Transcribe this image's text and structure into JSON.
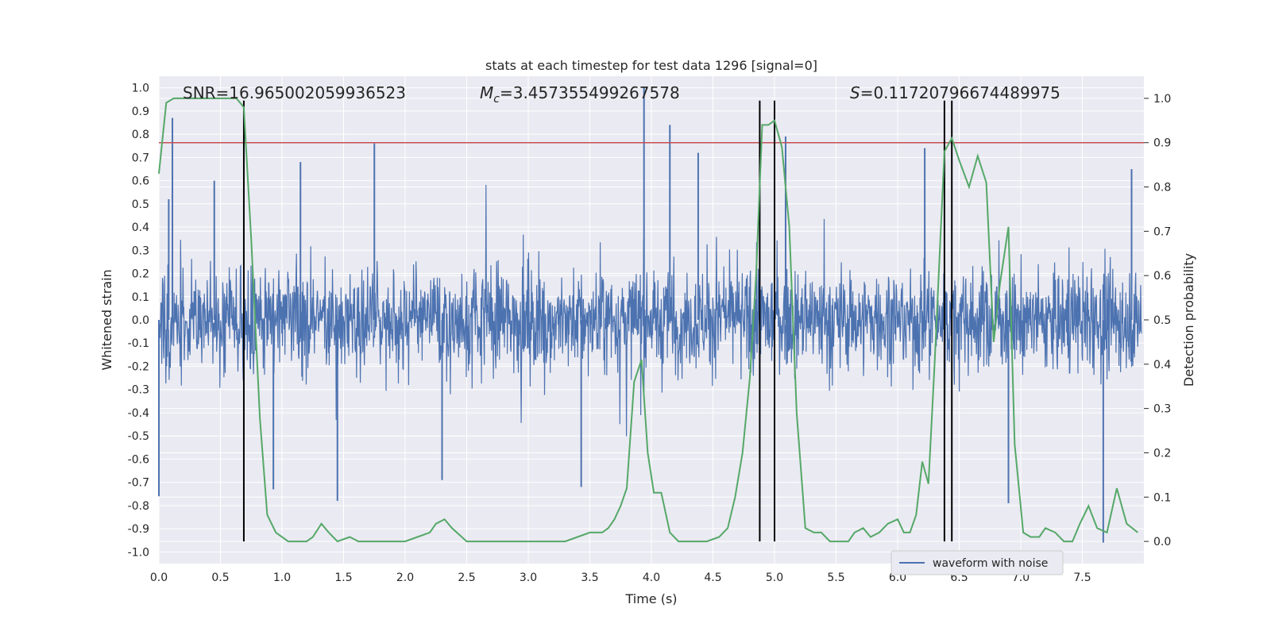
{
  "chart_data": {
    "type": "line",
    "title": "stats at each timestep for test data 1296 [signal=0]",
    "xlabel": "Time (s)",
    "ylabel_left": "Whitened strain",
    "ylabel_right": "Detection probability",
    "xlim": [
      0,
      8.0
    ],
    "ylim_left": [
      -1.05,
      1.05
    ],
    "ylim_right": [
      -0.05,
      1.05
    ],
    "xticks": [
      "0.0",
      "0.5",
      "1.0",
      "1.5",
      "2.0",
      "2.5",
      "3.0",
      "3.5",
      "4.0",
      "4.5",
      "5.0",
      "5.5",
      "6.0",
      "6.5",
      "7.0",
      "7.5"
    ],
    "yticks_left": [
      "1.0",
      "0.9",
      "0.8",
      "0.7",
      "0.6",
      "0.5",
      "0.4",
      "0.3",
      "0.2",
      "0.1",
      "0.0",
      "-0.1",
      "-0.2",
      "-0.3",
      "-0.4",
      "-0.5",
      "-0.6",
      "-0.7",
      "-0.8",
      "-0.9",
      "-1.0"
    ],
    "yticks_right": [
      "1.0",
      "0.9",
      "0.8",
      "0.7",
      "0.6",
      "0.5",
      "0.4",
      "0.3",
      "0.2",
      "0.1",
      "0.0"
    ],
    "grid": true,
    "annotations": {
      "snr": "SNR=16.965002059936523",
      "mc_symbol": "M",
      "mc_sub": "c",
      "mc_value": "=3.457355499267578",
      "s_symbol": "S",
      "s_value": "=0.11720796674489975"
    },
    "legend": {
      "entries": [
        "waveform with noise"
      ],
      "placement": "bottom-right"
    },
    "threshold": 0.9,
    "vlines_time": [
      0.69,
      4.88,
      5.0,
      6.38,
      6.44
    ],
    "series": [
      {
        "name": "waveform with noise",
        "axis": "left",
        "color": "#4c72b0",
        "description": "whitened noisy strain, dense band mostly within ±0.4 with spikes",
        "spikes": [
          {
            "t": 0.11,
            "v": 0.87
          },
          {
            "t": 0.08,
            "v": 0.52
          },
          {
            "t": 0.45,
            "v": 0.6
          },
          {
            "t": 1.75,
            "v": 0.76
          },
          {
            "t": 1.15,
            "v": 0.68
          },
          {
            "t": 3.94,
            "v": 1.0
          },
          {
            "t": 4.15,
            "v": 0.84
          },
          {
            "t": 4.38,
            "v": 0.72
          },
          {
            "t": 5.09,
            "v": 0.79
          },
          {
            "t": 6.22,
            "v": 0.74
          },
          {
            "t": 7.9,
            "v": 0.65
          },
          {
            "t": 7.67,
            "v": -0.96
          },
          {
            "t": 0.93,
            "v": -0.73
          },
          {
            "t": 1.45,
            "v": -0.78
          },
          {
            "t": 3.43,
            "v": -0.72
          },
          {
            "t": 6.9,
            "v": -0.79
          },
          {
            "t": 0.0,
            "v": -0.76
          },
          {
            "t": 2.3,
            "v": -0.69
          }
        ]
      },
      {
        "name": "detection probability",
        "axis": "right",
        "color": "#55a868",
        "t": [
          0.0,
          0.06,
          0.12,
          0.25,
          0.4,
          0.55,
          0.63,
          0.69,
          0.75,
          0.82,
          0.88,
          0.95,
          1.05,
          1.2,
          1.25,
          1.32,
          1.38,
          1.45,
          1.55,
          1.62,
          1.72,
          1.85,
          2.0,
          2.1,
          2.2,
          2.25,
          2.32,
          2.38,
          2.5,
          2.6,
          2.8,
          3.0,
          3.2,
          3.3,
          3.4,
          3.5,
          3.6,
          3.65,
          3.7,
          3.75,
          3.8,
          3.86,
          3.92,
          3.97,
          4.02,
          4.08,
          4.15,
          4.22,
          4.3,
          4.45,
          4.55,
          4.62,
          4.68,
          4.74,
          4.8,
          4.85,
          4.9,
          4.95,
          5.0,
          5.06,
          5.12,
          5.18,
          5.25,
          5.32,
          5.38,
          5.45,
          5.52,
          5.6,
          5.65,
          5.72,
          5.78,
          5.85,
          5.92,
          6.0,
          6.05,
          6.1,
          6.15,
          6.2,
          6.25,
          6.3,
          6.38,
          6.44,
          6.5,
          6.58,
          6.65,
          6.72,
          6.78,
          6.83,
          6.9,
          6.95,
          7.02,
          7.08,
          7.15,
          7.2,
          7.28,
          7.35,
          7.42,
          7.48,
          7.55,
          7.62,
          7.7,
          7.78,
          7.86,
          7.95
        ],
        "v": [
          0.83,
          0.99,
          1.0,
          1.0,
          1.0,
          1.0,
          1.0,
          0.98,
          0.68,
          0.28,
          0.06,
          0.02,
          0.0,
          0.0,
          0.01,
          0.04,
          0.02,
          0.0,
          0.01,
          0.0,
          0.0,
          0.0,
          0.0,
          0.01,
          0.02,
          0.04,
          0.05,
          0.03,
          0.0,
          0.0,
          0.0,
          0.0,
          0.0,
          0.0,
          0.01,
          0.02,
          0.02,
          0.03,
          0.05,
          0.08,
          0.12,
          0.36,
          0.41,
          0.2,
          0.11,
          0.11,
          0.02,
          0.0,
          0.0,
          0.0,
          0.01,
          0.03,
          0.1,
          0.2,
          0.37,
          0.6,
          0.94,
          0.94,
          0.95,
          0.89,
          0.71,
          0.29,
          0.03,
          0.02,
          0.02,
          0.0,
          0.0,
          0.0,
          0.02,
          0.03,
          0.01,
          0.02,
          0.04,
          0.05,
          0.02,
          0.02,
          0.06,
          0.18,
          0.13,
          0.4,
          0.88,
          0.91,
          0.86,
          0.8,
          0.87,
          0.81,
          0.45,
          0.58,
          0.71,
          0.22,
          0.02,
          0.01,
          0.01,
          0.03,
          0.02,
          0.0,
          0.0,
          0.04,
          0.08,
          0.03,
          0.02,
          0.12,
          0.04,
          0.02
        ]
      }
    ]
  }
}
